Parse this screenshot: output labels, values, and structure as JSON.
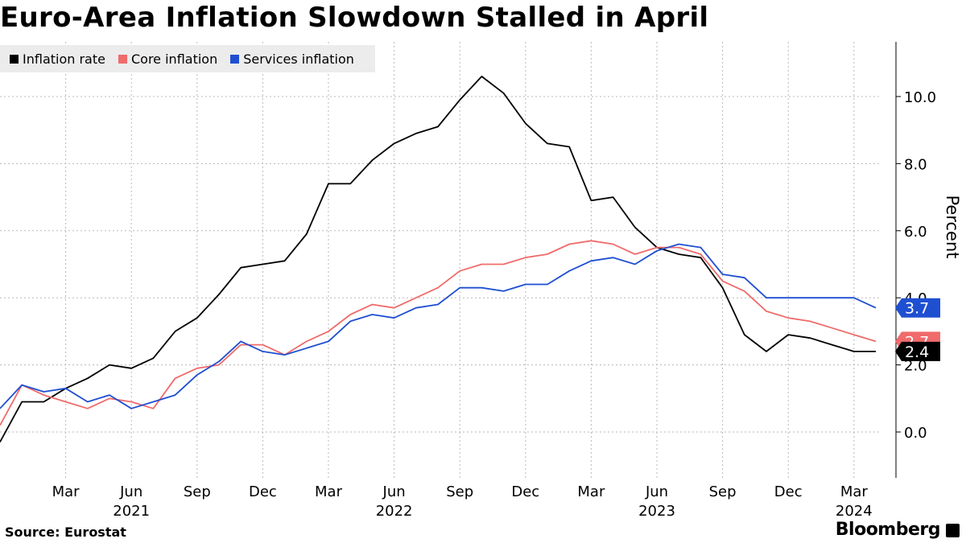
{
  "title": "Euro-Area Inflation Slowdown Stalled in April",
  "source": "Source: Eurostat",
  "brand": "Bloomberg",
  "colors": {
    "inflation": "#000000",
    "core": "#f06b6b",
    "services": "#1f4fd1",
    "grid": "#b8b8b8",
    "legend_bg": "#ececec"
  },
  "legend": [
    {
      "label": "Inflation rate",
      "color": "#000000"
    },
    {
      "label": "Core inflation",
      "color": "#f06b6b"
    },
    {
      "label": "Services inflation",
      "color": "#1f4fd1"
    }
  ],
  "chart_data": {
    "type": "line",
    "title": "Euro-Area Inflation Slowdown Stalled in April",
    "ylabel": "Percent",
    "xlabel": "",
    "ylim": [
      -1.3,
      11.7
    ],
    "yticks": [
      0.0,
      2.0,
      4.0,
      6.0,
      8.0,
      10.0
    ],
    "ytick_labels": [
      "0.0",
      "2.0",
      "4.0",
      "6.0",
      "8.0",
      "10.0"
    ],
    "x_start": "2020-12",
    "x_end": "2024-04",
    "x_tick_labels": [
      {
        "label": "Mar",
        "month": "2021-03"
      },
      {
        "label": "Jun",
        "month": "2021-06"
      },
      {
        "label": "Sep",
        "month": "2021-09"
      },
      {
        "label": "Dec",
        "month": "2021-12"
      },
      {
        "label": "Mar",
        "month": "2022-03"
      },
      {
        "label": "Jun",
        "month": "2022-06"
      },
      {
        "label": "Sep",
        "month": "2022-09"
      },
      {
        "label": "Dec",
        "month": "2022-12"
      },
      {
        "label": "Mar",
        "month": "2023-03"
      },
      {
        "label": "Jun",
        "month": "2023-06"
      },
      {
        "label": "Sep",
        "month": "2023-09"
      },
      {
        "label": "Dec",
        "month": "2023-12"
      },
      {
        "label": "Mar",
        "month": "2024-03"
      }
    ],
    "x_year_labels": [
      {
        "label": "2021",
        "month": "2021-06"
      },
      {
        "label": "2022",
        "month": "2022-06"
      },
      {
        "label": "2023",
        "month": "2023-06"
      },
      {
        "label": "2024",
        "month": "2024-03"
      }
    ],
    "grid": true,
    "legend_position": "top-left",
    "months": [
      "2020-12",
      "2021-01",
      "2021-02",
      "2021-03",
      "2021-04",
      "2021-05",
      "2021-06",
      "2021-07",
      "2021-08",
      "2021-09",
      "2021-10",
      "2021-11",
      "2021-12",
      "2022-01",
      "2022-02",
      "2022-03",
      "2022-04",
      "2022-05",
      "2022-06",
      "2022-07",
      "2022-08",
      "2022-09",
      "2022-10",
      "2022-11",
      "2022-12",
      "2023-01",
      "2023-02",
      "2023-03",
      "2023-04",
      "2023-05",
      "2023-06",
      "2023-07",
      "2023-08",
      "2023-09",
      "2023-10",
      "2023-11",
      "2023-12",
      "2024-01",
      "2024-02",
      "2024-03",
      "2024-04"
    ],
    "series": [
      {
        "name": "Inflation rate",
        "color": "#000000",
        "values": [
          -0.3,
          0.9,
          0.9,
          1.3,
          1.6,
          2.0,
          1.9,
          2.2,
          3.0,
          3.4,
          4.1,
          4.9,
          5.0,
          5.1,
          5.9,
          7.4,
          7.4,
          8.1,
          8.6,
          8.9,
          9.1,
          9.9,
          10.6,
          10.1,
          9.2,
          8.6,
          8.5,
          6.9,
          7.0,
          6.1,
          5.5,
          5.3,
          5.2,
          4.3,
          2.9,
          2.4,
          2.9,
          2.8,
          2.6,
          2.4,
          2.4
        ],
        "end_label": "2.4"
      },
      {
        "name": "Core inflation",
        "color": "#f06b6b",
        "values": [
          0.2,
          1.4,
          1.1,
          0.9,
          0.7,
          1.0,
          0.9,
          0.7,
          1.6,
          1.9,
          2.0,
          2.6,
          2.6,
          2.3,
          2.7,
          3.0,
          3.5,
          3.8,
          3.7,
          4.0,
          4.3,
          4.8,
          5.0,
          5.0,
          5.2,
          5.3,
          5.6,
          5.7,
          5.6,
          5.3,
          5.5,
          5.5,
          5.3,
          4.5,
          4.2,
          3.6,
          3.4,
          3.3,
          3.1,
          2.9,
          2.7
        ],
        "end_label": "2.7"
      },
      {
        "name": "Services inflation",
        "color": "#1f4fd1",
        "values": [
          0.7,
          1.4,
          1.2,
          1.3,
          0.9,
          1.1,
          0.7,
          0.9,
          1.1,
          1.7,
          2.1,
          2.7,
          2.4,
          2.3,
          2.5,
          2.7,
          3.3,
          3.5,
          3.4,
          3.7,
          3.8,
          4.3,
          4.3,
          4.2,
          4.4,
          4.4,
          4.8,
          5.1,
          5.2,
          5.0,
          5.4,
          5.6,
          5.5,
          4.7,
          4.6,
          4.0,
          4.0,
          4.0,
          4.0,
          4.0,
          3.7
        ],
        "end_label": "3.7"
      }
    ]
  }
}
